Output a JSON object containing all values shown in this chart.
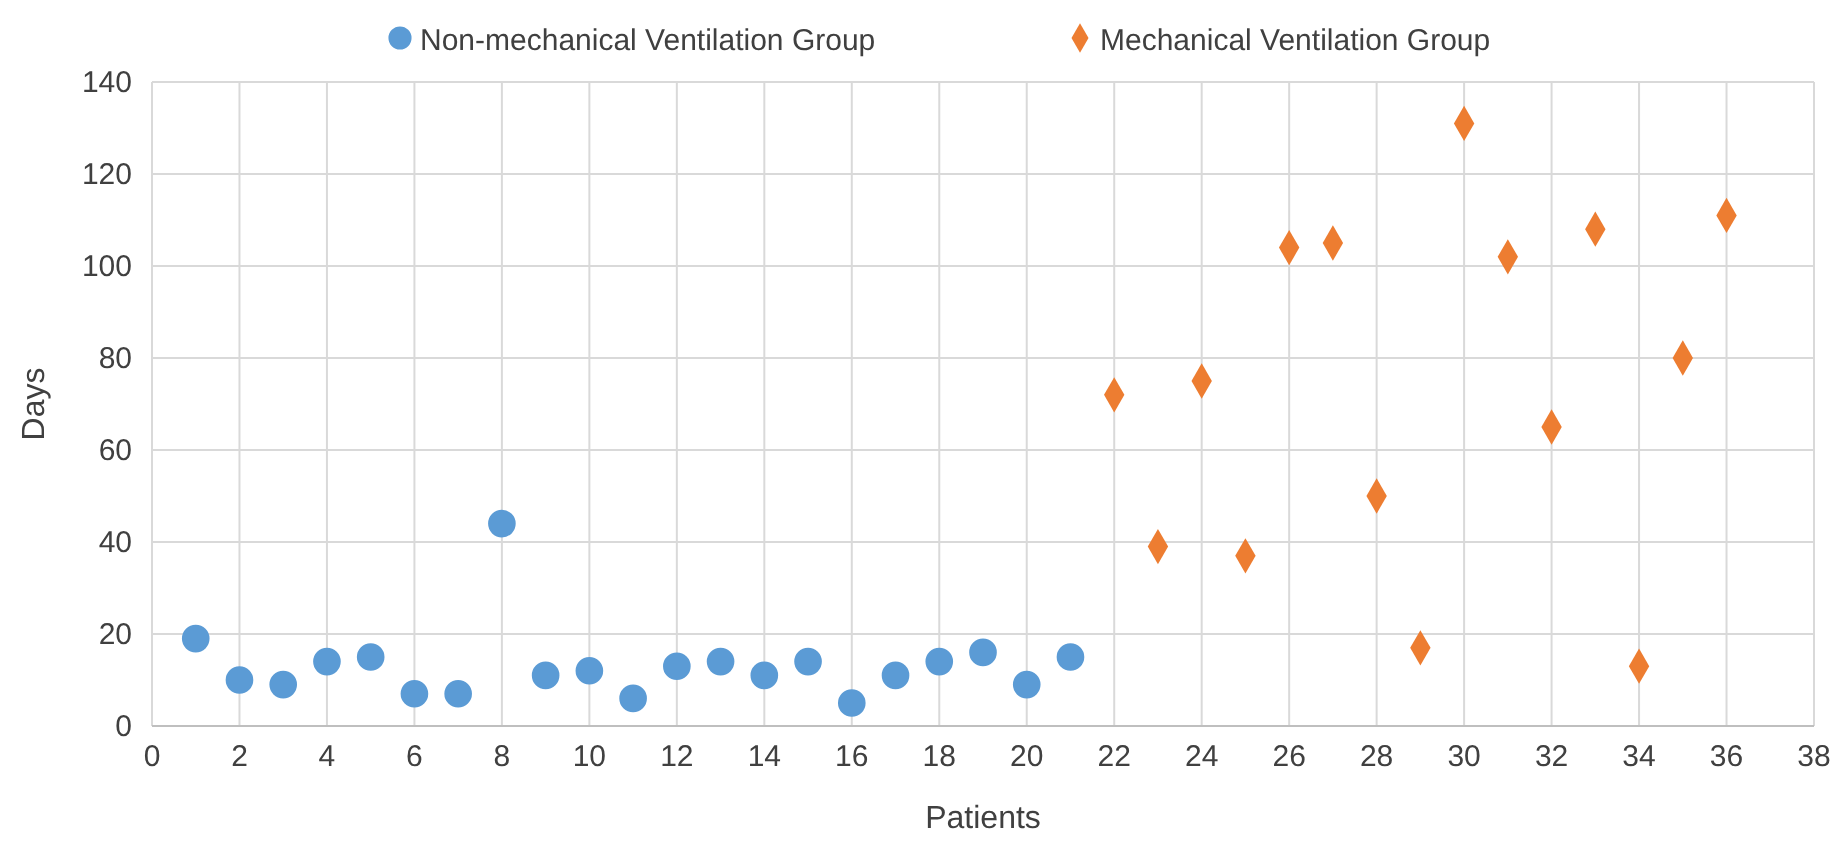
{
  "chart_data": {
    "type": "scatter",
    "xlabel": "Patients",
    "ylabel": "Days",
    "xlim": [
      0,
      38
    ],
    "xticks": [
      0,
      2,
      4,
      6,
      8,
      10,
      12,
      14,
      16,
      18,
      20,
      22,
      24,
      26,
      28,
      30,
      32,
      34,
      36,
      38
    ],
    "ylim": [
      0,
      140
    ],
    "yticks": [
      0,
      20,
      40,
      60,
      80,
      100,
      120,
      140
    ],
    "grid": true,
    "legend": "top",
    "series": [
      {
        "name": "Non-mechanical Ventilation Group",
        "color": "#5b9bd5",
        "marker": "circle",
        "x": [
          1,
          2,
          3,
          4,
          5,
          6,
          7,
          8,
          9,
          10,
          11,
          12,
          13,
          14,
          15,
          16,
          17,
          18,
          19,
          20,
          21
        ],
        "values": [
          19,
          10,
          9,
          14,
          15,
          7,
          7,
          44,
          11,
          12,
          6,
          13,
          14,
          11,
          14,
          5,
          11,
          14,
          16,
          9,
          15
        ]
      },
      {
        "name": "Mechanical Ventilation Group",
        "color": "#ed7d31",
        "marker": "diamond",
        "x": [
          22,
          23,
          24,
          25,
          26,
          27,
          28,
          29,
          30,
          31,
          32,
          33,
          34,
          35,
          36
        ],
        "values": [
          72,
          39,
          75,
          37,
          104,
          105,
          50,
          17,
          131,
          102,
          65,
          108,
          13,
          80,
          111
        ]
      }
    ]
  }
}
